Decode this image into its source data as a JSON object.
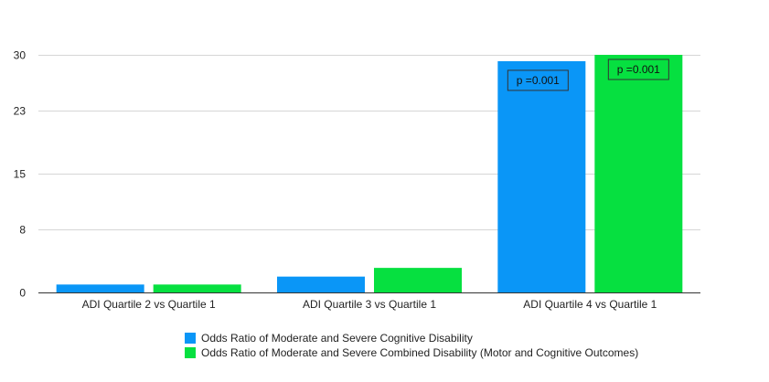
{
  "chart_data": {
    "type": "bar",
    "categories": [
      "ADI Quartile 2 vs Quartile 1",
      "ADI Quartile 3 vs Quartile 1",
      "ADI Quartile 4 vs Quartile 1"
    ],
    "series": [
      {
        "name": "Odds Ratio of Moderate and Severe Cognitive Disability",
        "color": "#0a96f7",
        "values": [
          1.0,
          2.0,
          29.2
        ]
      },
      {
        "name": "Odds Ratio of Moderate and Severe Combined Disability (Motor and Cognitive Outcomes)",
        "color": "#06e040",
        "values": [
          1.0,
          3.1,
          30.0
        ]
      }
    ],
    "yticks": [
      0,
      8,
      15,
      23,
      30
    ],
    "ylim": [
      0,
      30
    ],
    "grid": true,
    "legend_position": "bottom",
    "annotations": [
      {
        "text": "p =0.001",
        "series": 0,
        "category": 2
      },
      {
        "text": "p =0.001",
        "series": 1,
        "category": 2
      }
    ]
  }
}
